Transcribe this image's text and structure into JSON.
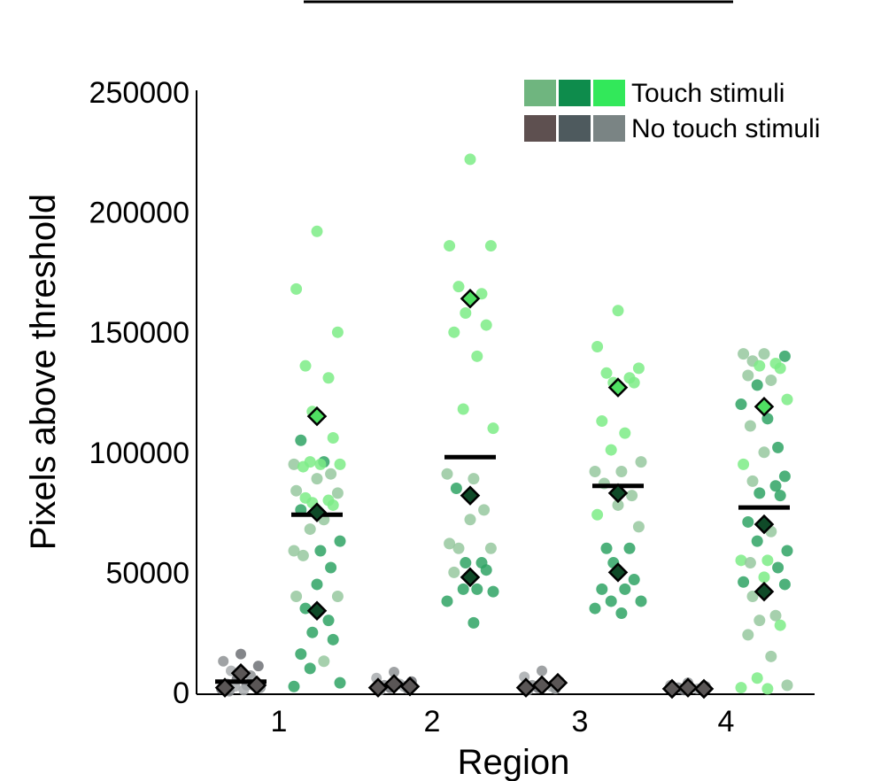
{
  "chart_data": {
    "type": "scatter",
    "xlabel": "Region",
    "ylabel": "Pixels above threshold",
    "categories": [
      "1",
      "2",
      "3",
      "4"
    ],
    "yticks": [
      "0",
      "50000",
      "100000",
      "150000",
      "200000",
      "250000"
    ],
    "ylim": [
      0,
      250000
    ],
    "grid": false,
    "legend": {
      "placement": "top-right",
      "entries": [
        {
          "label": "Touch stimuli",
          "colors": [
            "#6fb57f",
            "#0e8c4c",
            "#32e85a"
          ]
        },
        {
          "label": "No touch stimuli",
          "colors": [
            "#5e5050",
            "#4e5a5e",
            "#7a8484"
          ]
        }
      ]
    },
    "colors": {
      "touch_light": "#7cec86",
      "touch_mid": "#2fa364",
      "touch_pale": "#96c89f",
      "no_touch_a": "#6f7175",
      "no_touch_b": "#8e9294",
      "no_touch_c": "#a8acae",
      "mean_bar": "#000000",
      "diamond_no_touch": "#5a5656",
      "diamond_touch_dark": "#0f4a28",
      "diamond_touch_light": "#4fe062"
    },
    "groups": [
      {
        "category": "1",
        "condition": "No touch stimuli",
        "mean": 4500,
        "points": [
          {
            "y": 16000,
            "c": "no_touch_a"
          },
          {
            "y": 13000,
            "c": "no_touch_b"
          },
          {
            "y": 11000,
            "c": "no_touch_a"
          },
          {
            "y": 9000,
            "c": "no_touch_c"
          },
          {
            "y": 7000,
            "c": "no_touch_b"
          },
          {
            "y": 5500,
            "c": "no_touch_a"
          },
          {
            "y": 4500,
            "c": "no_touch_c"
          },
          {
            "y": 3500,
            "c": "no_touch_b"
          },
          {
            "y": 3000,
            "c": "no_touch_a"
          },
          {
            "y": 2500,
            "c": "no_touch_c"
          },
          {
            "y": 2000,
            "c": "no_touch_b"
          },
          {
            "y": 1500,
            "c": "no_touch_a"
          },
          {
            "y": 1000,
            "c": "no_touch_c"
          },
          {
            "y": 500,
            "c": "no_touch_b"
          },
          {
            "y": 3000,
            "c": "no_touch_c"
          }
        ],
        "diamonds": [
          {
            "y": 2000,
            "c": "diamond_no_touch"
          },
          {
            "y": 8000,
            "c": "diamond_no_touch"
          },
          {
            "y": 3000,
            "c": "diamond_no_touch"
          }
        ]
      },
      {
        "category": "1",
        "condition": "Touch stimuli",
        "mean": 74000,
        "points": [
          {
            "y": 192000,
            "c": "touch_light"
          },
          {
            "y": 168000,
            "c": "touch_light"
          },
          {
            "y": 150000,
            "c": "touch_light"
          },
          {
            "y": 136000,
            "c": "touch_light"
          },
          {
            "y": 131000,
            "c": "touch_light"
          },
          {
            "y": 117000,
            "c": "touch_light"
          },
          {
            "y": 106000,
            "c": "touch_light"
          },
          {
            "y": 105000,
            "c": "touch_mid"
          },
          {
            "y": 96000,
            "c": "touch_mid"
          },
          {
            "y": 96000,
            "c": "touch_light"
          },
          {
            "y": 95000,
            "c": "touch_light"
          },
          {
            "y": 95000,
            "c": "touch_pale"
          },
          {
            "y": 95000,
            "c": "touch_light"
          },
          {
            "y": 94000,
            "c": "touch_light"
          },
          {
            "y": 91000,
            "c": "touch_pale"
          },
          {
            "y": 89000,
            "c": "touch_pale"
          },
          {
            "y": 84000,
            "c": "touch_pale"
          },
          {
            "y": 83000,
            "c": "touch_pale"
          },
          {
            "y": 81000,
            "c": "touch_light"
          },
          {
            "y": 80000,
            "c": "touch_light"
          },
          {
            "y": 79000,
            "c": "touch_light"
          },
          {
            "y": 78000,
            "c": "touch_light"
          },
          {
            "y": 76000,
            "c": "touch_mid"
          },
          {
            "y": 72000,
            "c": "touch_pale"
          },
          {
            "y": 68000,
            "c": "touch_pale"
          },
          {
            "y": 63000,
            "c": "touch_mid"
          },
          {
            "y": 59000,
            "c": "touch_pale"
          },
          {
            "y": 59000,
            "c": "touch_mid"
          },
          {
            "y": 57000,
            "c": "touch_pale"
          },
          {
            "y": 52000,
            "c": "touch_mid"
          },
          {
            "y": 45000,
            "c": "touch_mid"
          },
          {
            "y": 40000,
            "c": "touch_pale"
          },
          {
            "y": 40000,
            "c": "touch_pale"
          },
          {
            "y": 35000,
            "c": "touch_mid"
          },
          {
            "y": 30000,
            "c": "touch_mid"
          },
          {
            "y": 25000,
            "c": "touch_mid"
          },
          {
            "y": 22000,
            "c": "touch_mid"
          },
          {
            "y": 16000,
            "c": "touch_mid"
          },
          {
            "y": 13000,
            "c": "touch_pale"
          },
          {
            "y": 10000,
            "c": "touch_mid"
          },
          {
            "y": 4000,
            "c": "touch_mid"
          },
          {
            "y": 2500,
            "c": "touch_mid"
          }
        ],
        "diamonds": [
          {
            "y": 115000,
            "c": "diamond_touch_light"
          },
          {
            "y": 75000,
            "c": "diamond_touch_dark"
          },
          {
            "y": 34000,
            "c": "diamond_touch_dark"
          }
        ]
      },
      {
        "category": "2",
        "condition": "No touch stimuli",
        "mean": null,
        "points": [
          {
            "y": 8500,
            "c": "no_touch_b"
          },
          {
            "y": 6000,
            "c": "no_touch_c"
          },
          {
            "y": 4500,
            "c": "no_touch_a"
          },
          {
            "y": 3000,
            "c": "no_touch_b"
          },
          {
            "y": 2500,
            "c": "no_touch_c"
          },
          {
            "y": 2000,
            "c": "no_touch_a"
          },
          {
            "y": 1500,
            "c": "no_touch_b"
          },
          {
            "y": 1000,
            "c": "no_touch_c"
          },
          {
            "y": 3500,
            "c": "no_touch_c"
          }
        ],
        "diamonds": [
          {
            "y": 2000,
            "c": "diamond_no_touch"
          },
          {
            "y": 3500,
            "c": "diamond_no_touch"
          },
          {
            "y": 2500,
            "c": "diamond_no_touch"
          }
        ]
      },
      {
        "category": "2",
        "condition": "Touch stimuli",
        "mean": 98000,
        "points": [
          {
            "y": 222000,
            "c": "touch_light"
          },
          {
            "y": 186000,
            "c": "touch_light"
          },
          {
            "y": 186000,
            "c": "touch_light"
          },
          {
            "y": 169000,
            "c": "touch_light"
          },
          {
            "y": 166000,
            "c": "touch_light"
          },
          {
            "y": 158000,
            "c": "touch_light"
          },
          {
            "y": 153000,
            "c": "touch_light"
          },
          {
            "y": 150000,
            "c": "touch_light"
          },
          {
            "y": 140000,
            "c": "touch_light"
          },
          {
            "y": 118000,
            "c": "touch_light"
          },
          {
            "y": 110000,
            "c": "touch_light"
          },
          {
            "y": 91000,
            "c": "touch_pale"
          },
          {
            "y": 89000,
            "c": "touch_pale"
          },
          {
            "y": 85000,
            "c": "touch_mid"
          },
          {
            "y": 76000,
            "c": "touch_pale"
          },
          {
            "y": 72000,
            "c": "touch_pale"
          },
          {
            "y": 62000,
            "c": "touch_pale"
          },
          {
            "y": 60000,
            "c": "touch_pale"
          },
          {
            "y": 60000,
            "c": "touch_pale"
          },
          {
            "y": 54000,
            "c": "touch_mid"
          },
          {
            "y": 54000,
            "c": "touch_mid"
          },
          {
            "y": 51000,
            "c": "touch_mid"
          },
          {
            "y": 50000,
            "c": "touch_pale"
          },
          {
            "y": 43000,
            "c": "touch_mid"
          },
          {
            "y": 43000,
            "c": "touch_mid"
          },
          {
            "y": 42000,
            "c": "touch_mid"
          },
          {
            "y": 38000,
            "c": "touch_mid"
          },
          {
            "y": 29000,
            "c": "touch_mid"
          }
        ],
        "diamonds": [
          {
            "y": 164000,
            "c": "diamond_touch_light"
          },
          {
            "y": 82000,
            "c": "diamond_touch_dark"
          },
          {
            "y": 48000,
            "c": "diamond_touch_dark"
          }
        ]
      },
      {
        "category": "3",
        "condition": "No touch stimuli",
        "mean": null,
        "points": [
          {
            "y": 9000,
            "c": "no_touch_b"
          },
          {
            "y": 6500,
            "c": "no_touch_c"
          },
          {
            "y": 4500,
            "c": "no_touch_a"
          },
          {
            "y": 3000,
            "c": "no_touch_b"
          },
          {
            "y": 2500,
            "c": "no_touch_c"
          },
          {
            "y": 2000,
            "c": "no_touch_a"
          },
          {
            "y": 1500,
            "c": "no_touch_b"
          },
          {
            "y": 1000,
            "c": "no_touch_c"
          }
        ],
        "diamonds": [
          {
            "y": 2000,
            "c": "diamond_no_touch"
          },
          {
            "y": 3000,
            "c": "diamond_no_touch"
          },
          {
            "y": 4000,
            "c": "diamond_no_touch"
          }
        ]
      },
      {
        "category": "3",
        "condition": "Touch stimuli",
        "mean": 86000,
        "points": [
          {
            "y": 159000,
            "c": "touch_light"
          },
          {
            "y": 144000,
            "c": "touch_light"
          },
          {
            "y": 135000,
            "c": "touch_light"
          },
          {
            "y": 133000,
            "c": "touch_light"
          },
          {
            "y": 131000,
            "c": "touch_light"
          },
          {
            "y": 129000,
            "c": "touch_light"
          },
          {
            "y": 129000,
            "c": "touch_light"
          },
          {
            "y": 113000,
            "c": "touch_light"
          },
          {
            "y": 108000,
            "c": "touch_light"
          },
          {
            "y": 101000,
            "c": "touch_light"
          },
          {
            "y": 96000,
            "c": "touch_pale"
          },
          {
            "y": 92000,
            "c": "touch_pale"
          },
          {
            "y": 92000,
            "c": "touch_pale"
          },
          {
            "y": 87000,
            "c": "touch_pale"
          },
          {
            "y": 82000,
            "c": "touch_pale"
          },
          {
            "y": 78000,
            "c": "touch_pale"
          },
          {
            "y": 74000,
            "c": "touch_light"
          },
          {
            "y": 69000,
            "c": "touch_pale"
          },
          {
            "y": 60000,
            "c": "touch_mid"
          },
          {
            "y": 60000,
            "c": "touch_mid"
          },
          {
            "y": 54000,
            "c": "touch_mid"
          },
          {
            "y": 47000,
            "c": "touch_mid"
          },
          {
            "y": 43000,
            "c": "touch_mid"
          },
          {
            "y": 43000,
            "c": "touch_mid"
          },
          {
            "y": 38000,
            "c": "touch_mid"
          },
          {
            "y": 38000,
            "c": "touch_mid"
          },
          {
            "y": 35000,
            "c": "touch_mid"
          },
          {
            "y": 33000,
            "c": "touch_mid"
          }
        ],
        "diamonds": [
          {
            "y": 127000,
            "c": "diamond_touch_light"
          },
          {
            "y": 83000,
            "c": "diamond_touch_dark"
          },
          {
            "y": 50000,
            "c": "diamond_touch_dark"
          }
        ]
      },
      {
        "category": "4",
        "condition": "No touch stimuli",
        "mean": null,
        "points": [
          {
            "y": 4000,
            "c": "no_touch_b"
          },
          {
            "y": 3000,
            "c": "no_touch_c"
          },
          {
            "y": 2500,
            "c": "no_touch_a"
          },
          {
            "y": 2000,
            "c": "no_touch_b"
          },
          {
            "y": 1500,
            "c": "no_touch_c"
          },
          {
            "y": 1000,
            "c": "no_touch_a"
          }
        ],
        "diamonds": [
          {
            "y": 1500,
            "c": "diamond_no_touch"
          },
          {
            "y": 2000,
            "c": "diamond_no_touch"
          },
          {
            "y": 1500,
            "c": "diamond_no_touch"
          }
        ]
      },
      {
        "category": "4",
        "condition": "Touch stimuli",
        "mean": 77000,
        "points": [
          {
            "y": 141000,
            "c": "touch_pale"
          },
          {
            "y": 141000,
            "c": "touch_pale"
          },
          {
            "y": 140000,
            "c": "touch_mid"
          },
          {
            "y": 138000,
            "c": "touch_pale"
          },
          {
            "y": 137000,
            "c": "touch_light"
          },
          {
            "y": 136000,
            "c": "touch_light"
          },
          {
            "y": 135000,
            "c": "touch_light"
          },
          {
            "y": 132000,
            "c": "touch_pale"
          },
          {
            "y": 130000,
            "c": "touch_pale"
          },
          {
            "y": 128000,
            "c": "touch_mid"
          },
          {
            "y": 122000,
            "c": "touch_light"
          },
          {
            "y": 120000,
            "c": "touch_mid"
          },
          {
            "y": 114000,
            "c": "touch_mid"
          },
          {
            "y": 111000,
            "c": "touch_pale"
          },
          {
            "y": 102000,
            "c": "touch_mid"
          },
          {
            "y": 100000,
            "c": "touch_pale"
          },
          {
            "y": 95000,
            "c": "touch_light"
          },
          {
            "y": 90000,
            "c": "touch_mid"
          },
          {
            "y": 88000,
            "c": "touch_pale"
          },
          {
            "y": 86000,
            "c": "touch_mid"
          },
          {
            "y": 83000,
            "c": "touch_mid"
          },
          {
            "y": 82000,
            "c": "touch_mid"
          },
          {
            "y": 71000,
            "c": "touch_mid"
          },
          {
            "y": 67000,
            "c": "touch_pale"
          },
          {
            "y": 63000,
            "c": "touch_mid"
          },
          {
            "y": 59000,
            "c": "touch_mid"
          },
          {
            "y": 55000,
            "c": "touch_light"
          },
          {
            "y": 55000,
            "c": "touch_light"
          },
          {
            "y": 54000,
            "c": "touch_pale"
          },
          {
            "y": 52000,
            "c": "touch_mid"
          },
          {
            "y": 48000,
            "c": "touch_light"
          },
          {
            "y": 46000,
            "c": "touch_mid"
          },
          {
            "y": 45000,
            "c": "touch_mid"
          },
          {
            "y": 40000,
            "c": "touch_pale"
          },
          {
            "y": 32000,
            "c": "touch_pale"
          },
          {
            "y": 30000,
            "c": "touch_pale"
          },
          {
            "y": 28000,
            "c": "touch_light"
          },
          {
            "y": 24000,
            "c": "touch_pale"
          },
          {
            "y": 15000,
            "c": "touch_pale"
          },
          {
            "y": 6000,
            "c": "touch_light"
          },
          {
            "y": 3000,
            "c": "touch_pale"
          },
          {
            "y": 2000,
            "c": "touch_light"
          },
          {
            "y": 1500,
            "c": "touch_light"
          }
        ],
        "diamonds": [
          {
            "y": 119000,
            "c": "diamond_touch_light"
          },
          {
            "y": 70000,
            "c": "diamond_touch_dark"
          },
          {
            "y": 42000,
            "c": "diamond_touch_dark"
          }
        ]
      }
    ]
  }
}
